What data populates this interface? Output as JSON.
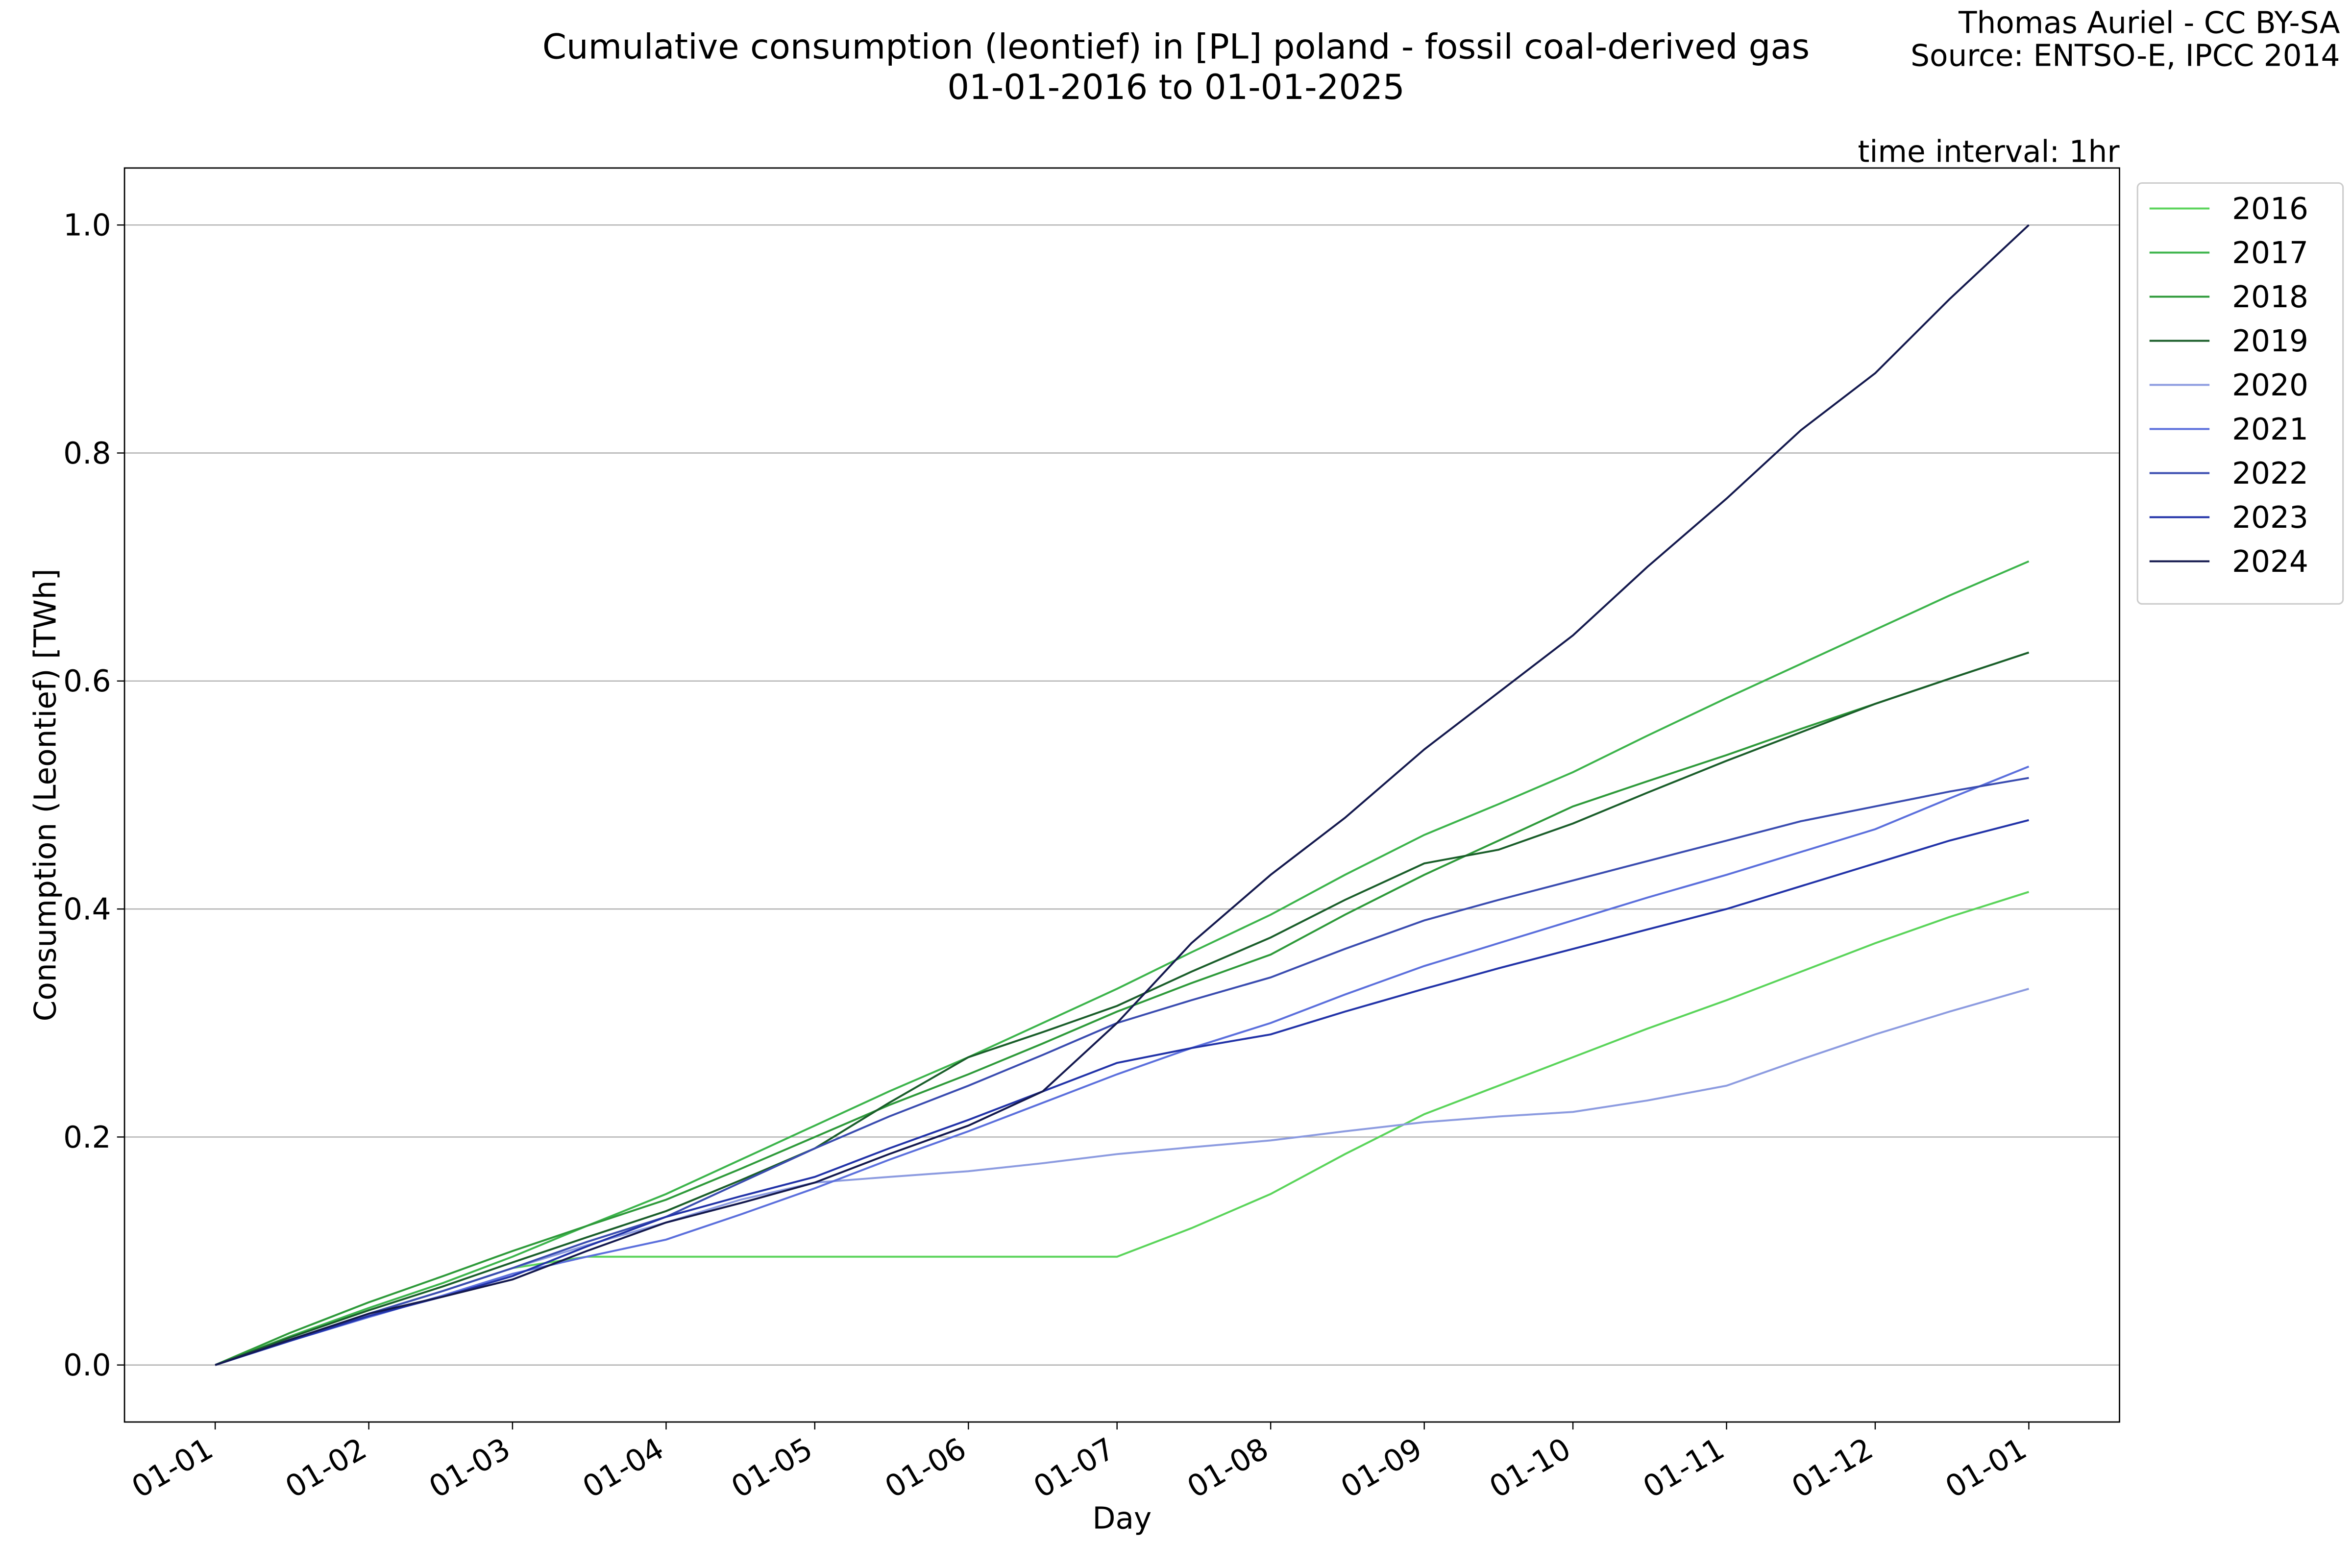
{
  "chart_data": {
    "type": "line",
    "title": "Cumulative consumption (leontief) in [PL] poland - fossil coal-derived gas",
    "subtitle": "01-01-2016 to 01-01-2025",
    "author": "Thomas Auriel - CC BY-SA",
    "source": "Source: ENTSO-E, IPCC 2014",
    "annotation": "time interval: 1hr",
    "x_label": "Day",
    "y_label": "Consumption (Leontief) [TWh]",
    "x": [
      0,
      15,
      31,
      46,
      60,
      75,
      91,
      106,
      121,
      136,
      152,
      167,
      182,
      197,
      213,
      228,
      244,
      259,
      274,
      289,
      305,
      320,
      335,
      350,
      366
    ],
    "xlim": [
      -18.3,
      384.3
    ],
    "xticks": [
      {
        "value": 0,
        "label": "01-01"
      },
      {
        "value": 31,
        "label": "01-02"
      },
      {
        "value": 60,
        "label": "01-03"
      },
      {
        "value": 91,
        "label": "01-04"
      },
      {
        "value": 121,
        "label": "01-05"
      },
      {
        "value": 152,
        "label": "01-06"
      },
      {
        "value": 182,
        "label": "01-07"
      },
      {
        "value": 213,
        "label": "01-08"
      },
      {
        "value": 244,
        "label": "01-09"
      },
      {
        "value": 274,
        "label": "01-10"
      },
      {
        "value": 305,
        "label": "01-11"
      },
      {
        "value": 335,
        "label": "01-12"
      },
      {
        "value": 366,
        "label": "01-01"
      }
    ],
    "ylim": [
      -0.05,
      1.05
    ],
    "yticks": [
      {
        "value": 0,
        "label": "0.0"
      },
      0.2,
      0.4,
      0.6,
      0.8,
      {
        "value": 1,
        "label": "1.0"
      }
    ],
    "grid": true,
    "legend": "outside-right",
    "series": [
      {
        "name": "2016",
        "color": "#5ad45a",
        "values": [
          0,
          0.022,
          0.045,
          0.065,
          0.085,
          0.095,
          0.095,
          0.095,
          0.095,
          0.095,
          0.095,
          0.095,
          0.095,
          0.12,
          0.15,
          0.185,
          0.22,
          0.245,
          0.27,
          0.295,
          0.32,
          0.345,
          0.37,
          0.393,
          0.415
        ]
      },
      {
        "name": "2017",
        "color": "#3cb44b",
        "values": [
          0,
          0.025,
          0.05,
          0.072,
          0.095,
          0.122,
          0.15,
          0.18,
          0.21,
          0.24,
          0.27,
          0.3,
          0.33,
          0.362,
          0.395,
          0.43,
          0.465,
          0.492,
          0.52,
          0.552,
          0.585,
          0.615,
          0.645,
          0.675,
          0.705
        ]
      },
      {
        "name": "2018",
        "color": "#2e9a3a",
        "values": [
          0,
          0.028,
          0.055,
          0.078,
          0.1,
          0.122,
          0.145,
          0.172,
          0.2,
          0.228,
          0.255,
          0.282,
          0.31,
          0.335,
          0.36,
          0.395,
          0.43,
          0.46,
          0.49,
          0.512,
          0.535,
          0.558,
          0.58,
          0.602,
          0.625
        ]
      },
      {
        "name": "2019",
        "color": "#1a5e2a",
        "values": [
          0,
          0.024,
          0.048,
          0.069,
          0.09,
          0.112,
          0.135,
          0.162,
          0.19,
          0.23,
          0.27,
          0.292,
          0.315,
          0.345,
          0.375,
          0.408,
          0.44,
          0.452,
          0.475,
          0.502,
          0.53,
          0.555,
          0.58,
          0.602,
          0.625
        ]
      },
      {
        "name": "2020",
        "color": "#8c9be0",
        "values": [
          0,
          0.022,
          0.045,
          0.065,
          0.085,
          0.105,
          0.125,
          0.145,
          0.16,
          0.165,
          0.17,
          0.177,
          0.185,
          0.191,
          0.197,
          0.205,
          0.213,
          0.218,
          0.222,
          0.232,
          0.245,
          0.268,
          0.29,
          0.31,
          0.33
        ]
      },
      {
        "name": "2021",
        "color": "#5b6fdc",
        "values": [
          0,
          0.021,
          0.042,
          0.061,
          0.08,
          0.095,
          0.11,
          0.132,
          0.155,
          0.18,
          0.205,
          0.23,
          0.255,
          0.278,
          0.3,
          0.325,
          0.35,
          0.37,
          0.39,
          0.41,
          0.43,
          0.45,
          0.47,
          0.497,
          0.525
        ]
      },
      {
        "name": "2022",
        "color": "#3a4cb0",
        "values": [
          0,
          0.022,
          0.045,
          0.065,
          0.085,
          0.108,
          0.13,
          0.16,
          0.19,
          0.218,
          0.245,
          0.272,
          0.3,
          0.32,
          0.34,
          0.365,
          0.39,
          0.408,
          0.425,
          0.442,
          0.46,
          0.477,
          0.49,
          0.503,
          0.515
        ]
      },
      {
        "name": "2023",
        "color": "#2233a8",
        "values": [
          0,
          0.021,
          0.043,
          0.06,
          0.078,
          0.104,
          0.13,
          0.148,
          0.165,
          0.19,
          0.215,
          0.24,
          0.265,
          0.278,
          0.29,
          0.31,
          0.33,
          0.348,
          0.365,
          0.382,
          0.4,
          0.42,
          0.44,
          0.46,
          0.478
        ]
      },
      {
        "name": "2024",
        "color": "#14194e",
        "values": [
          0,
          0.022,
          0.045,
          0.06,
          0.075,
          0.1,
          0.125,
          0.142,
          0.16,
          0.185,
          0.21,
          0.24,
          0.3,
          0.37,
          0.43,
          0.48,
          0.54,
          0.59,
          0.64,
          0.7,
          0.76,
          0.82,
          0.87,
          0.935,
          1.0
        ]
      }
    ]
  }
}
